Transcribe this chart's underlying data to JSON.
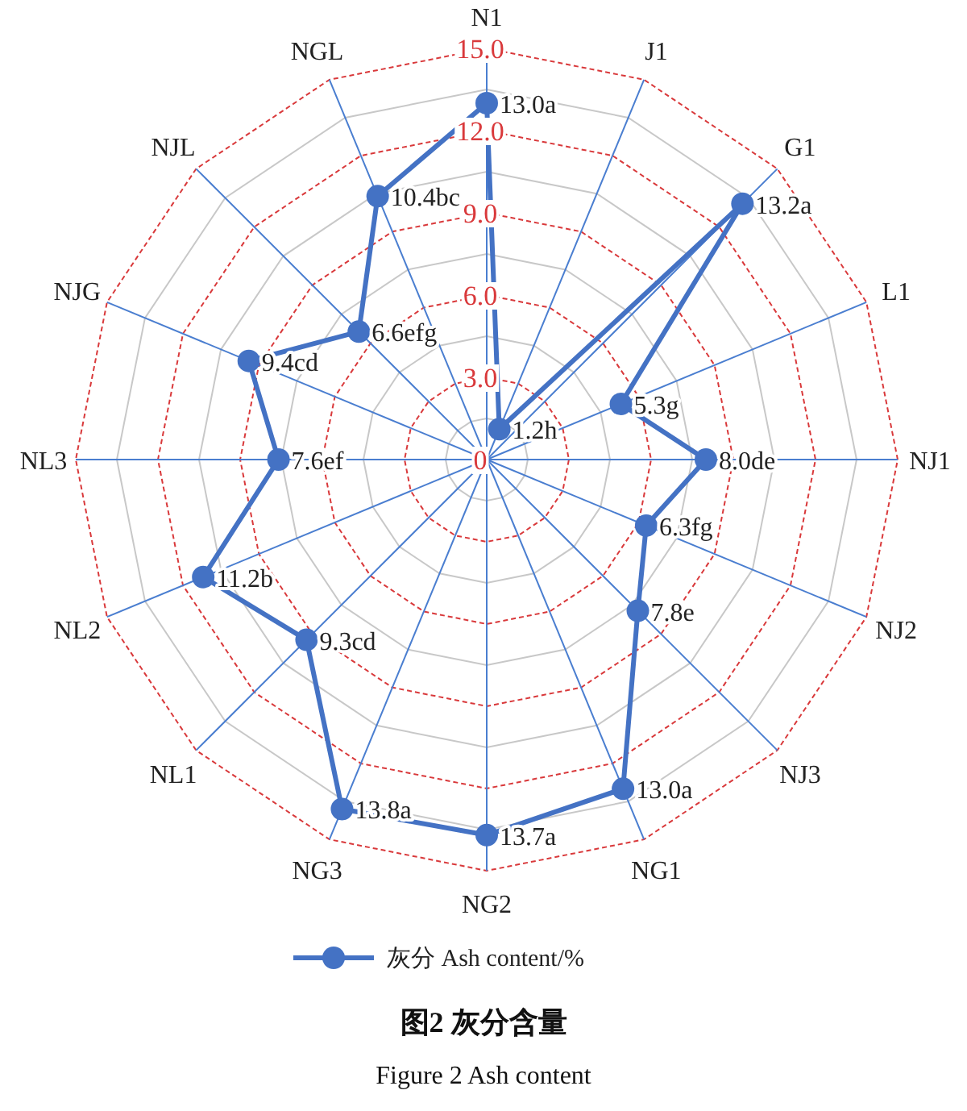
{
  "chart_data": {
    "type": "radar",
    "title": "图2 灰分含量",
    "subtitle": "Figure 2 Ash content",
    "categories": [
      "N1",
      "J1",
      "G1",
      "L1",
      "NJ1",
      "NJ2",
      "NJ3",
      "NG1",
      "NG2",
      "NG3",
      "NL1",
      "NL2",
      "NL3",
      "NJG",
      "NJL",
      "NGL"
    ],
    "series": [
      {
        "name": "灰分 Ash content/%",
        "color": "#4472c4",
        "values": [
          13.0,
          1.2,
          13.2,
          5.3,
          8.0,
          6.3,
          7.8,
          13.0,
          13.7,
          13.8,
          9.3,
          11.2,
          7.6,
          9.4,
          6.6,
          10.4
        ],
        "value_labels": [
          "13.0a",
          "1.2h",
          "13.2a",
          "5.3g",
          "8.0de",
          "6.3fg",
          "7.8e",
          "13.0a",
          "13.7a",
          "13.8a",
          "9.3cd",
          "11.2b",
          "7.6ef",
          "9.4cd",
          "6.6efg",
          "10.4bc"
        ]
      }
    ],
    "ylim": [
      0,
      15
    ],
    "yticks": [
      0,
      {
        "value": 3,
        "label": "3.0"
      },
      {
        "value": 6,
        "label": "6.0"
      },
      {
        "value": 9,
        "label": "9.0"
      },
      {
        "value": 12,
        "label": "12.0"
      },
      {
        "value": 15,
        "label": "15.0"
      }
    ],
    "grid": true,
    "legend": "bottom",
    "marker": "circle",
    "line_style": "solid"
  }
}
